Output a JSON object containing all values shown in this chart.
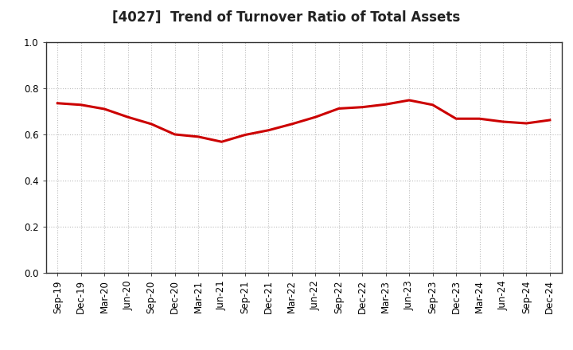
{
  "title": "[4027]  Trend of Turnover Ratio of Total Assets",
  "x_labels": [
    "Sep-19",
    "Dec-19",
    "Mar-20",
    "Jun-20",
    "Sep-20",
    "Dec-20",
    "Mar-21",
    "Jun-21",
    "Sep-21",
    "Dec-21",
    "Mar-22",
    "Jun-22",
    "Sep-22",
    "Dec-22",
    "Mar-23",
    "Jun-23",
    "Sep-23",
    "Dec-23",
    "Mar-24",
    "Jun-24",
    "Sep-24",
    "Dec-24"
  ],
  "y_values": [
    0.735,
    0.728,
    0.71,
    0.675,
    0.645,
    0.6,
    0.59,
    0.568,
    0.598,
    0.618,
    0.645,
    0.675,
    0.712,
    0.718,
    0.73,
    0.748,
    0.728,
    0.668,
    0.668,
    0.655,
    0.648,
    0.662
  ],
  "line_color": "#cc0000",
  "line_width": 2.2,
  "ylim": [
    0.0,
    1.0
  ],
  "yticks": [
    0.0,
    0.2,
    0.4,
    0.6,
    0.8,
    1.0
  ],
  "background_color": "#ffffff",
  "grid_color": "#bbbbbb",
  "title_fontsize": 12,
  "tick_fontsize": 8.5,
  "fig_width": 7.2,
  "fig_height": 4.4,
  "dpi": 100
}
